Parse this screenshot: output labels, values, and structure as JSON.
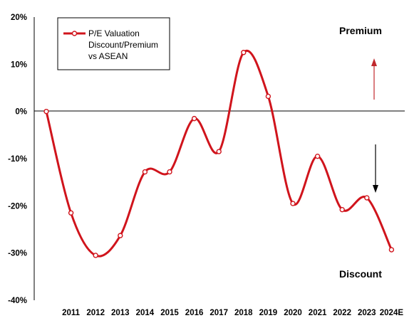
{
  "chart_data": {
    "type": "line",
    "x": [
      "",
      "2011",
      "2012",
      "2013",
      "2014",
      "2015",
      "2016",
      "2017",
      "2018",
      "2019",
      "2020",
      "2021",
      "2022",
      "2023",
      "2024E"
    ],
    "series": [
      {
        "name": "P/E Valuation Discount/Premium vs ASEAN",
        "values": [
          0,
          -21.5,
          -30.5,
          -26.3,
          -12.8,
          -12.8,
          -1.5,
          -8.5,
          12.5,
          3.2,
          -19.5,
          -9.5,
          -20.8,
          -18.3,
          -29.3
        ]
      }
    ],
    "legend_lines": [
      "P/E Valuation",
      "Discount/Premium",
      "vs ASEAN"
    ],
    "y_ticks": [
      "20%",
      "10%",
      "0%",
      "-10%",
      "-20%",
      "-30%",
      "-40%"
    ],
    "ylim": [
      -40,
      20
    ],
    "annotations": {
      "premium": "Premium",
      "discount": "Discount"
    },
    "legend_position": "top-left",
    "grid": false,
    "colors": {
      "series": "#d0141c",
      "arrow_up": "#c0282d",
      "arrow_down": "#000000"
    }
  }
}
